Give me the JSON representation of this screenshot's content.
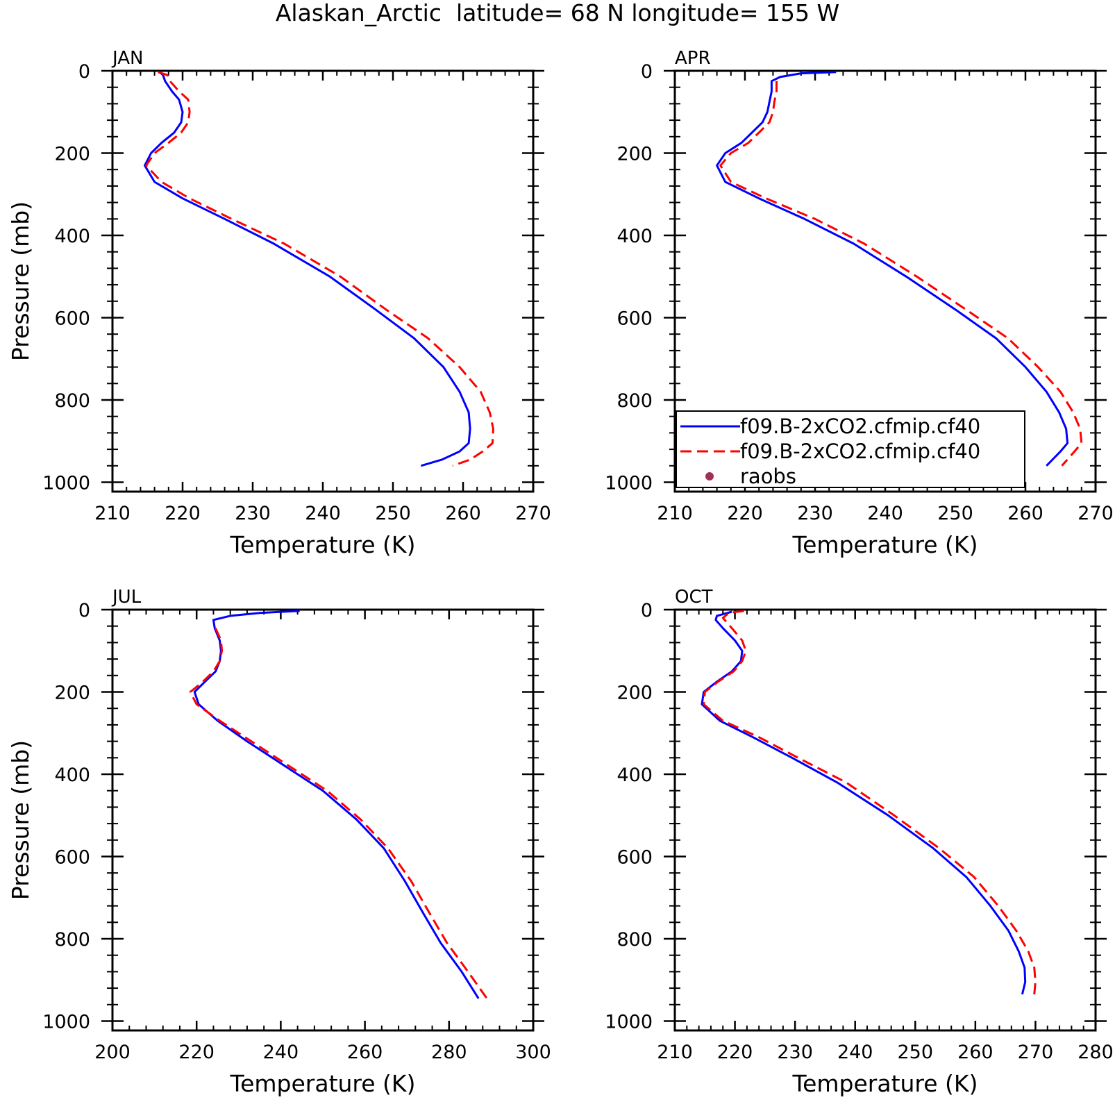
{
  "figure": {
    "title": "Alaskan_Arctic  latitude= 68 N longitude= 155 W"
  },
  "legend": {
    "placement": "inside-bottom-left of APR panel",
    "entries": [
      {
        "label": "f09.B-2xCO2.cfmip.cf40",
        "style": "solid",
        "color": "#0000ff"
      },
      {
        "label": "f09.B-2xCO2.cfmip.cf40",
        "style": "dashed",
        "color": "#ff0000"
      },
      {
        "label": "raobs",
        "style": "marker",
        "color": "#a0305a"
      }
    ]
  },
  "chart_data": [
    {
      "type": "line",
      "title": "JAN",
      "xlabel": "Temperature (K)",
      "ylabel": "Pressure (mb)",
      "xlim": [
        210,
        270
      ],
      "ylim": [
        1000,
        0
      ],
      "xticks": [
        210,
        220,
        230,
        240,
        250,
        260,
        270
      ],
      "yticks": [
        0,
        200,
        400,
        600,
        800,
        1000
      ],
      "series": [
        {
          "color": "#0000ff",
          "style": "solid",
          "points": [
            [
              216.7,
              3
            ],
            [
              217.2,
              10
            ],
            [
              217.5,
              25
            ],
            [
              218.5,
              50
            ],
            [
              219.5,
              70
            ],
            [
              220,
              100
            ],
            [
              219.8,
              125
            ],
            [
              218.8,
              150
            ],
            [
              217,
              175
            ],
            [
              215.5,
              200
            ],
            [
              214.6,
              230
            ],
            [
              216,
              270
            ],
            [
              220,
              310
            ],
            [
              226,
              360
            ],
            [
              233,
              420
            ],
            [
              241,
              500
            ],
            [
              247.5,
              580
            ],
            [
              253,
              650
            ],
            [
              257.2,
              720
            ],
            [
              259.5,
              780
            ],
            [
              260.8,
              830
            ],
            [
              261,
              870
            ],
            [
              260.8,
              905
            ],
            [
              259.5,
              925
            ],
            [
              257,
              945
            ],
            [
              254,
              960
            ]
          ]
        },
        {
          "color": "#ff0000",
          "style": "dashed",
          "points": [
            [
              216.5,
              3
            ],
            [
              217.8,
              10
            ],
            [
              218.2,
              25
            ],
            [
              219.5,
              50
            ],
            [
              220.8,
              70
            ],
            [
              221,
              100
            ],
            [
              220.8,
              125
            ],
            [
              219.8,
              150
            ],
            [
              218,
              175
            ],
            [
              216,
              200
            ],
            [
              214.8,
              230
            ],
            [
              217,
              270
            ],
            [
              221,
              310
            ],
            [
              227,
              360
            ],
            [
              234.5,
              420
            ],
            [
              242.5,
              500
            ],
            [
              249,
              580
            ],
            [
              255,
              650
            ],
            [
              259.5,
              720
            ],
            [
              262.5,
              780
            ],
            [
              263.8,
              830
            ],
            [
              264.3,
              870
            ],
            [
              264.2,
              905
            ],
            [
              262.8,
              925
            ],
            [
              261,
              945
            ],
            [
              258.5,
              960
            ]
          ]
        }
      ]
    },
    {
      "type": "line",
      "title": "APR",
      "xlabel": "Temperature (K)",
      "ylabel": "",
      "xlim": [
        210,
        270
      ],
      "ylim": [
        1000,
        0
      ],
      "xticks": [
        210,
        220,
        230,
        240,
        250,
        260,
        270
      ],
      "yticks": [
        0,
        200,
        400,
        600,
        800,
        1000
      ],
      "series": [
        {
          "color": "#0000ff",
          "style": "solid",
          "points": [
            [
              233,
              3
            ],
            [
              228,
              6
            ],
            [
              225,
              15
            ],
            [
              223.8,
              25
            ],
            [
              223.8,
              50
            ],
            [
              223.5,
              75
            ],
            [
              223.2,
              100
            ],
            [
              222.5,
              125
            ],
            [
              221,
              150
            ],
            [
              219.5,
              175
            ],
            [
              217.2,
              200
            ],
            [
              216,
              230
            ],
            [
              217.2,
              270
            ],
            [
              222,
              310
            ],
            [
              228.5,
              360
            ],
            [
              235.5,
              420
            ],
            [
              243,
              500
            ],
            [
              250,
              580
            ],
            [
              255.8,
              650
            ],
            [
              260,
              720
            ],
            [
              263,
              780
            ],
            [
              264.8,
              830
            ],
            [
              265.8,
              870
            ],
            [
              266,
              905
            ],
            [
              265,
              925
            ],
            [
              263,
              960
            ]
          ]
        },
        {
          "color": "#ff0000",
          "style": "dashed",
          "points": [
            [
              224.5,
              25
            ],
            [
              224.5,
              50
            ],
            [
              224.2,
              75
            ],
            [
              224,
              100
            ],
            [
              223.5,
              125
            ],
            [
              222,
              150
            ],
            [
              220.5,
              175
            ],
            [
              218,
              200
            ],
            [
              216.5,
              230
            ],
            [
              218,
              270
            ],
            [
              223,
              310
            ],
            [
              230,
              360
            ],
            [
              237,
              420
            ],
            [
              244.5,
              500
            ],
            [
              251.5,
              580
            ],
            [
              257.5,
              650
            ],
            [
              261.8,
              720
            ],
            [
              265,
              780
            ],
            [
              266.8,
              830
            ],
            [
              267.8,
              870
            ],
            [
              268,
              905
            ],
            [
              267,
              925
            ],
            [
              265.2,
              960
            ]
          ]
        }
      ]
    },
    {
      "type": "line",
      "title": "JUL",
      "xlabel": "Temperature (K)",
      "ylabel": "Pressure (mb)",
      "xlim": [
        200,
        300
      ],
      "ylim": [
        1000,
        0
      ],
      "xticks": [
        200,
        220,
        240,
        260,
        280,
        300
      ],
      "yticks": [
        0,
        200,
        400,
        600,
        800,
        1000
      ],
      "series": [
        {
          "color": "#0000ff",
          "style": "solid",
          "points": [
            [
              244.5,
              3
            ],
            [
              235,
              8
            ],
            [
              228,
              15
            ],
            [
              224,
              25
            ],
            [
              224.3,
              45
            ],
            [
              225.5,
              75
            ],
            [
              225.8,
              100
            ],
            [
              225.5,
              125
            ],
            [
              224.5,
              150
            ],
            [
              222,
              175
            ],
            [
              219.5,
              200
            ],
            [
              220.5,
              230
            ],
            [
              225,
              270
            ],
            [
              232,
              320
            ],
            [
              241,
              380
            ],
            [
              250,
              440
            ],
            [
              258,
              510
            ],
            [
              264.5,
              580
            ],
            [
              269.5,
              660
            ],
            [
              274,
              740
            ],
            [
              278,
              810
            ],
            [
              283,
              880
            ],
            [
              287,
              945
            ]
          ]
        },
        {
          "color": "#ff0000",
          "style": "dashed",
          "points": [
            [
              224.5,
              45
            ],
            [
              225.8,
              75
            ],
            [
              226,
              100
            ],
            [
              225.5,
              125
            ],
            [
              224,
              150
            ],
            [
              221.5,
              175
            ],
            [
              218.5,
              200
            ],
            [
              220,
              230
            ],
            [
              225.5,
              270
            ],
            [
              233,
              320
            ],
            [
              242,
              380
            ],
            [
              251,
              440
            ],
            [
              259,
              510
            ],
            [
              265.5,
              580
            ],
            [
              271,
              660
            ],
            [
              275.5,
              740
            ],
            [
              279.5,
              810
            ],
            [
              284.5,
              880
            ],
            [
              289,
              945
            ]
          ]
        }
      ]
    },
    {
      "type": "line",
      "title": "OCT",
      "xlabel": "Temperature (K)",
      "ylabel": "",
      "xlim": [
        210,
        280
      ],
      "ylim": [
        1000,
        0
      ],
      "xticks": [
        210,
        220,
        230,
        240,
        250,
        260,
        270,
        280
      ],
      "yticks": [
        0,
        200,
        400,
        600,
        800,
        1000
      ],
      "series": [
        {
          "color": "#0000ff",
          "style": "solid",
          "points": [
            [
              219.5,
              5
            ],
            [
              217,
              15
            ],
            [
              216.8,
              25
            ],
            [
              218,
              45
            ],
            [
              220,
              75
            ],
            [
              221.2,
              100
            ],
            [
              221,
              125
            ],
            [
              219.5,
              150
            ],
            [
              217,
              175
            ],
            [
              214.8,
              200
            ],
            [
              214.5,
              230
            ],
            [
              217.5,
              270
            ],
            [
              223,
              310
            ],
            [
              229.5,
              360
            ],
            [
              237,
              420
            ],
            [
              245.5,
              500
            ],
            [
              253,
              580
            ],
            [
              258.5,
              650
            ],
            [
              262.5,
              720
            ],
            [
              265.5,
              780
            ],
            [
              267.2,
              830
            ],
            [
              268.2,
              870
            ],
            [
              268.3,
              905
            ],
            [
              267.8,
              935
            ]
          ]
        },
        {
          "color": "#ff0000",
          "style": "dashed",
          "points": [
            [
              221.5,
              3
            ],
            [
              219,
              8
            ],
            [
              218,
              20
            ],
            [
              219.5,
              45
            ],
            [
              221.2,
              75
            ],
            [
              221.8,
              100
            ],
            [
              221.2,
              125
            ],
            [
              219.8,
              150
            ],
            [
              217.2,
              175
            ],
            [
              215,
              200
            ],
            [
              214.8,
              230
            ],
            [
              218,
              270
            ],
            [
              224,
              310
            ],
            [
              230.5,
              360
            ],
            [
              238.5,
              420
            ],
            [
              246.5,
              500
            ],
            [
              254,
              580
            ],
            [
              259.8,
              650
            ],
            [
              263.8,
              720
            ],
            [
              266.8,
              780
            ],
            [
              268.8,
              830
            ],
            [
              269.8,
              870
            ],
            [
              270,
              905
            ],
            [
              269.8,
              935
            ]
          ]
        }
      ]
    }
  ]
}
